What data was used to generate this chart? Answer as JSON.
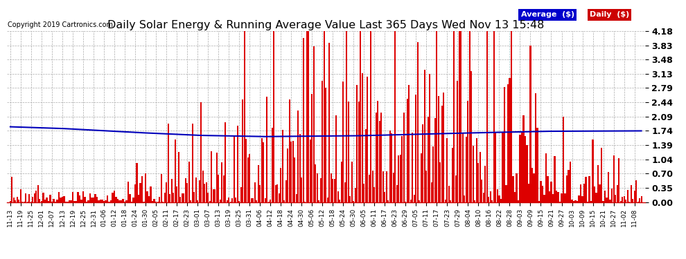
{
  "title": "Daily Solar Energy & Running Average Value Last 365 Days Wed Nov 13 15:48",
  "title_fontsize": 11.5,
  "copyright_text": "Copyright 2019 Cartronics.com",
  "legend_labels": [
    "Average  ($)",
    "Daily  ($)"
  ],
  "legend_bg_colors": [
    "#0000cc",
    "#cc0000"
  ],
  "bar_color": "#dd0000",
  "line_color": "#0000bb",
  "background_color": "#ffffff",
  "grid_color": "#aaaaaa",
  "ylim": [
    0.0,
    4.18
  ],
  "yticks": [
    0.0,
    0.35,
    0.7,
    1.04,
    1.39,
    1.74,
    2.09,
    2.44,
    2.79,
    3.13,
    3.48,
    3.83,
    4.18
  ],
  "figsize": [
    9.9,
    3.75
  ],
  "dpi": 100,
  "x_tick_labels": [
    "11-13",
    "11-19",
    "11-25",
    "12-01",
    "12-07",
    "12-13",
    "12-19",
    "12-25",
    "12-31",
    "01-06",
    "01-12",
    "01-18",
    "01-24",
    "01-30",
    "02-05",
    "02-11",
    "02-17",
    "02-23",
    "03-01",
    "03-07",
    "03-13",
    "03-19",
    "03-25",
    "03-31",
    "04-06",
    "04-12",
    "04-18",
    "04-24",
    "04-30",
    "05-06",
    "05-12",
    "05-18",
    "05-24",
    "05-30",
    "06-05",
    "06-11",
    "06-17",
    "06-23",
    "06-29",
    "07-05",
    "07-11",
    "07-17",
    "07-23",
    "07-29",
    "08-04",
    "08-10",
    "08-16",
    "08-22",
    "08-28",
    "09-03",
    "09-09",
    "09-15",
    "09-21",
    "09-27",
    "10-03",
    "10-09",
    "10-15",
    "10-21",
    "10-27",
    "11-02",
    "11-08"
  ],
  "n_days": 365,
  "avg_waypoints_t": [
    0.0,
    0.08,
    0.2,
    0.3,
    0.4,
    0.55,
    0.7,
    0.85,
    1.0
  ],
  "avg_waypoints_v": [
    1.84,
    1.8,
    1.7,
    1.63,
    1.6,
    1.62,
    1.68,
    1.73,
    1.74
  ]
}
